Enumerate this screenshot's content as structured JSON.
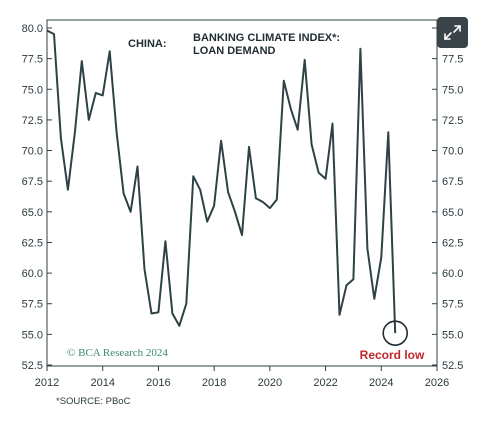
{
  "chart_data": {
    "type": "line",
    "title_region": "CHINA:",
    "title": "BANKING CLIMATE INDEX*:",
    "subtitle": "LOAN DEMAND",
    "xlim": [
      2012,
      2026
    ],
    "ylim": [
      52.5,
      80.0
    ],
    "x_ticks": [
      2012,
      2014,
      2016,
      2018,
      2020,
      2022,
      2024,
      2026
    ],
    "y_ticks": [
      52.5,
      55.0,
      57.5,
      60.0,
      62.5,
      65.0,
      67.5,
      70.0,
      72.5,
      75.0,
      77.5,
      80.0
    ],
    "y_tick_labels": [
      "52.5",
      "55.0",
      "57.5",
      "60.0",
      "62.5",
      "65.0",
      "67.5",
      "70.0",
      "72.5",
      "75.0",
      "77.5",
      "80.0"
    ],
    "grid": false,
    "line_color": "#2d4244",
    "series": [
      {
        "x": [
          2012.0,
          2012.25,
          2012.5,
          2012.75,
          2013.0,
          2013.25,
          2013.5,
          2013.75,
          2014.0,
          2014.25,
          2014.5,
          2014.75,
          2015.0,
          2015.25,
          2015.5,
          2015.75,
          2016.0,
          2016.25,
          2016.5,
          2016.75,
          2017.0,
          2017.25,
          2017.5,
          2017.75,
          2018.0,
          2018.25,
          2018.5,
          2018.75,
          2019.0,
          2019.25,
          2019.5,
          2019.75,
          2020.0,
          2020.25,
          2020.5,
          2020.75,
          2021.0,
          2021.25,
          2021.5,
          2021.75,
          2022.0,
          2022.25,
          2022.5,
          2022.75,
          2023.0,
          2023.25,
          2023.5,
          2023.75,
          2024.0,
          2024.25,
          2024.5
        ],
        "values": [
          79.8,
          79.5,
          71.0,
          66.8,
          71.5,
          77.3,
          72.5,
          74.7,
          74.5,
          78.1,
          71.5,
          66.5,
          65.0,
          68.7,
          60.3,
          56.7,
          56.8,
          62.6,
          56.7,
          55.7,
          57.5,
          67.9,
          66.8,
          64.2,
          65.5,
          70.8,
          66.6,
          65.0,
          63.1,
          70.3,
          66.1,
          65.8,
          65.3,
          66.0,
          75.7,
          73.4,
          71.7,
          77.4,
          70.5,
          68.2,
          67.7,
          72.2,
          56.6,
          59.0,
          59.5,
          78.3,
          62.0,
          57.9,
          61.3,
          71.5,
          55.1
        ]
      }
    ],
    "annotation": {
      "label": "Record low",
      "x": 2024.5,
      "y": 55.1,
      "color": "#c0272d"
    },
    "watermark": "© BCA Research 2024",
    "source": "*SOURCE: PBoC"
  },
  "ui": {
    "expand_icon": "expand-arrows-icon",
    "expand_button_color": "#3a4448"
  }
}
